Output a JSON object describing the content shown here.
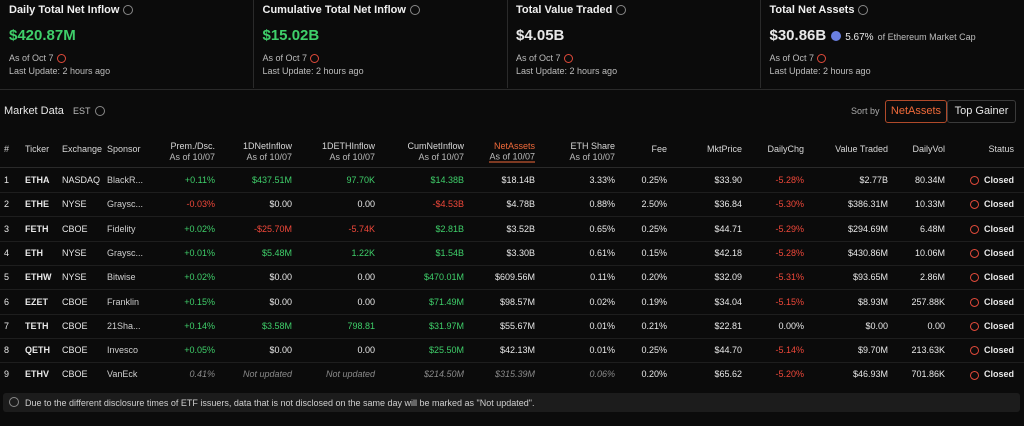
{
  "cards": [
    {
      "title": "Daily Total Net Inflow",
      "value": "$420.87M",
      "as_of": "As of Oct 7",
      "last_update": "Last Update: 2 hours ago"
    },
    {
      "title": "Cumulative Total Net Inflow",
      "value": "$15.02B",
      "as_of": "As of Oct 7",
      "last_update": "Last Update: 2 hours ago"
    },
    {
      "title": "Total Value Traded",
      "value": "$4.05B",
      "as_of": "As of Oct 7",
      "last_update": "Last Update: 2 hours ago"
    },
    {
      "title": "Total Net Assets",
      "value": "$30.86B",
      "share": "5.67%",
      "share_note": "of Ethereum Market Cap",
      "as_of": "As of Oct 7",
      "last_update": "Last Update: 2 hours ago"
    }
  ],
  "market": {
    "title": "Market Data",
    "timezone": "EST",
    "sort_label": "Sort by",
    "sort_options": [
      "NetAssets",
      "Top Gainer"
    ]
  },
  "table": {
    "headers": [
      {
        "label": "#"
      },
      {
        "label": "Ticker"
      },
      {
        "label": "Exchange"
      },
      {
        "label": "Sponsor"
      },
      {
        "label": "Prem./Dsc.",
        "sub": "As of 10/07"
      },
      {
        "label": "1DNetInflow",
        "sub": "As of 10/07"
      },
      {
        "label": "1DETHInflow",
        "sub": "As of 10/07"
      },
      {
        "label": "CumNetInflow",
        "sub": "As of 10/07"
      },
      {
        "label": "NetAssets",
        "sub": "As of 10/07"
      },
      {
        "label": "ETH Share",
        "sub": "As of 10/07"
      },
      {
        "label": "Fee"
      },
      {
        "label": "MktPrice"
      },
      {
        "label": "DailyChg"
      },
      {
        "label": "Value Traded"
      },
      {
        "label": "DailyVol"
      },
      {
        "label": "Status"
      }
    ],
    "rows": [
      [
        "1",
        "ETHA",
        "NASDAQ",
        "BlackR...",
        "+0.11%",
        "$437.51M",
        "97.70K",
        "$14.38B",
        "$18.14B",
        "3.33%",
        "0.25%",
        "$33.90",
        "-5.28%",
        "$2.77B",
        "80.34M",
        "Closed"
      ],
      [
        "2",
        "ETHE",
        "NYSE",
        "Graysc...",
        "-0.03%",
        "$0.00",
        "0.00",
        "-$4.53B",
        "$4.78B",
        "0.88%",
        "2.50%",
        "$36.84",
        "-5.30%",
        "$386.31M",
        "10.33M",
        "Closed"
      ],
      [
        "3",
        "FETH",
        "CBOE",
        "Fidelity",
        "+0.02%",
        "-$25.70M",
        "-5.74K",
        "$2.81B",
        "$3.52B",
        "0.65%",
        "0.25%",
        "$44.71",
        "-5.29%",
        "$294.69M",
        "6.48M",
        "Closed"
      ],
      [
        "4",
        "ETH",
        "NYSE",
        "Graysc...",
        "+0.01%",
        "$5.48M",
        "1.22K",
        "$1.54B",
        "$3.30B",
        "0.61%",
        "0.15%",
        "$42.18",
        "-5.28%",
        "$430.86M",
        "10.06M",
        "Closed"
      ],
      [
        "5",
        "ETHW",
        "NYSE",
        "Bitwise",
        "+0.02%",
        "$0.00",
        "0.00",
        "$470.01M",
        "$609.56M",
        "0.11%",
        "0.20%",
        "$32.09",
        "-5.31%",
        "$93.65M",
        "2.86M",
        "Closed"
      ],
      [
        "6",
        "EZET",
        "CBOE",
        "Franklin",
        "+0.15%",
        "$0.00",
        "0.00",
        "$71.49M",
        "$98.57M",
        "0.02%",
        "0.19%",
        "$34.04",
        "-5.15%",
        "$8.93M",
        "257.88K",
        "Closed"
      ],
      [
        "7",
        "TETH",
        "CBOE",
        "21Sha...",
        "+0.14%",
        "$3.58M",
        "798.81",
        "$31.97M",
        "$55.67M",
        "0.01%",
        "0.21%",
        "$22.81",
        "0.00%",
        "$0.00",
        "0.00",
        "Closed"
      ],
      [
        "8",
        "QETH",
        "CBOE",
        "Invesco",
        "+0.05%",
        "$0.00",
        "0.00",
        "$25.50M",
        "$42.13M",
        "0.01%",
        "0.25%",
        "$44.70",
        "-5.14%",
        "$9.70M",
        "213.63K",
        "Closed"
      ],
      [
        "9",
        "ETHV",
        "CBOE",
        "VanEck",
        "0.41%",
        "Not updated",
        "Not updated",
        "$214.50M",
        "$315.39M",
        "0.06%",
        "0.20%",
        "$65.62",
        "-5.20%",
        "$46.93M",
        "701.86K",
        "Closed"
      ]
    ]
  },
  "note": "Due to the different disclosure times of ETF issuers, data that is not disclosed on the same day will be marked as \"Not updated\"."
}
